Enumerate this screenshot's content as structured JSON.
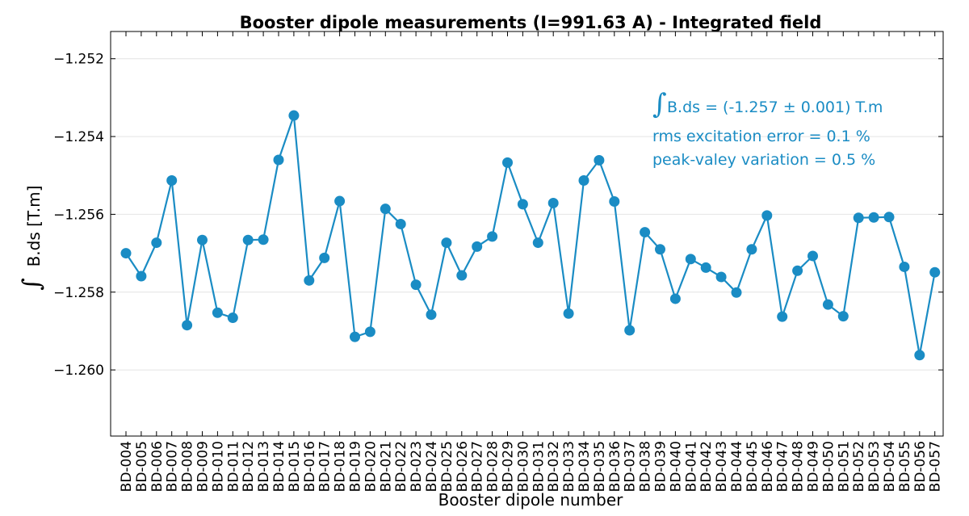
{
  "chart_data": {
    "type": "line",
    "title": "Booster dipole measurements (I=991.63 A) - Integrated field",
    "xlabel": "Booster dipole number",
    "ylabel": "B.ds [T.m]",
    "ylabel_prefix_symbol": "∫",
    "ylim": [
      -1.2617,
      -1.2513
    ],
    "yticks": [
      -1.252,
      -1.254,
      -1.256,
      -1.258,
      -1.26
    ],
    "ytick_labels": [
      "−1.252",
      "−1.254",
      "−1.256",
      "−1.258",
      "−1.260"
    ],
    "grid": true,
    "color": "#1a8cc4",
    "categories": [
      "BD-004",
      "BD-005",
      "BD-006",
      "BD-007",
      "BD-008",
      "BD-009",
      "BD-010",
      "BD-011",
      "BD-012",
      "BD-013",
      "BD-014",
      "BD-015",
      "BD-016",
      "BD-017",
      "BD-018",
      "BD-019",
      "BD-020",
      "BD-021",
      "BD-022",
      "BD-023",
      "BD-024",
      "BD-025",
      "BD-026",
      "BD-027",
      "BD-028",
      "BD-029",
      "BD-030",
      "BD-031",
      "BD-032",
      "BD-033",
      "BD-034",
      "BD-035",
      "BD-036",
      "BD-037",
      "BD-038",
      "BD-039",
      "BD-040",
      "BD-041",
      "BD-042",
      "BD-043",
      "BD-044",
      "BD-045",
      "BD-046",
      "BD-047",
      "BD-048",
      "BD-049",
      "BD-050",
      "BD-051",
      "BD-052",
      "BD-053",
      "BD-054",
      "BD-055",
      "BD-056",
      "BD-057"
    ],
    "values": [
      -1.257,
      -1.25759,
      -1.25673,
      -1.25513,
      -1.25885,
      -1.25666,
      -1.25853,
      -1.25866,
      -1.25666,
      -1.25665,
      -1.2546,
      -1.25346,
      -1.2577,
      -1.25712,
      -1.25566,
      -1.25915,
      -1.25902,
      -1.25586,
      -1.25625,
      -1.25781,
      -1.25858,
      -1.25673,
      -1.25757,
      -1.25683,
      -1.25657,
      -1.25467,
      -1.25574,
      -1.25673,
      -1.25571,
      -1.25855,
      -1.25513,
      -1.25461,
      -1.25567,
      -1.25898,
      -1.25646,
      -1.2569,
      -1.25817,
      -1.25715,
      -1.25737,
      -1.25761,
      -1.25801,
      -1.2569,
      -1.25603,
      -1.25863,
      -1.25745,
      -1.25707,
      -1.25832,
      -1.25862,
      -1.25609,
      -1.25608,
      -1.25607,
      -1.25735,
      -1.25962,
      -1.25749
    ],
    "annotations": [
      {
        "symbol": "∫",
        "text": "B.ds = (-1.257 ± 0.001) T.m"
      },
      {
        "text": "rms excitation error = 0.1 %"
      },
      {
        "text": "peak-valey variation = 0.5 %"
      }
    ]
  }
}
